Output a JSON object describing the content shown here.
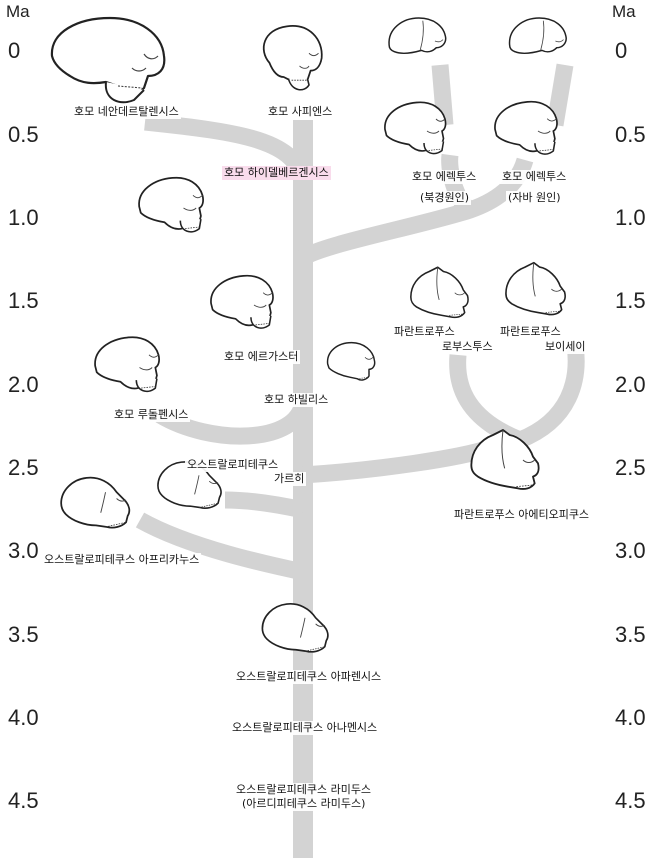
{
  "axis": {
    "unit": "Ma",
    "ticks": [
      "0",
      "0.5",
      "1.0",
      "1.5",
      "2.0",
      "2.5",
      "3.0",
      "3.5",
      "4.0",
      "4.5"
    ]
  },
  "colors": {
    "branch": "#d3d3d3",
    "highlight": "#f9dcec"
  },
  "species": [
    {
      "id": "neanderthalensis",
      "label": "호모 네안데르탈렌시스"
    },
    {
      "id": "sapiens",
      "label": "호모 사피엔스"
    },
    {
      "id": "heidelbergensis",
      "label": "호모 하이델베르겐시스"
    },
    {
      "id": "erectus-peking",
      "label": "호모 에렉투스",
      "sublabel": "(북경원인)"
    },
    {
      "id": "erectus-java",
      "label": "호모 에렉투스",
      "sublabel": "(자바 원인)"
    },
    {
      "id": "ergaster",
      "label": "호모 에르가스터"
    },
    {
      "id": "habilis",
      "label": "호모 하빌리스"
    },
    {
      "id": "rudolfensis",
      "label": "호모 루돌펜시스"
    },
    {
      "id": "robustus",
      "label": "파란트로푸스",
      "sublabel": "로부스투스"
    },
    {
      "id": "boisei",
      "label": "파란트로푸스",
      "sublabel": "보이세이"
    },
    {
      "id": "garhi",
      "label": "오스트랄로피테쿠스",
      "sublabel": "가르히"
    },
    {
      "id": "aethiopicus",
      "label": "파란트로푸스 아에티오피쿠스"
    },
    {
      "id": "africanus",
      "label": "오스트랄로피테쿠스 아프리카누스"
    },
    {
      "id": "afarensis",
      "label": "오스트랄로피테쿠스 아파렌시스"
    },
    {
      "id": "anamensis",
      "label": "오스트랄로피테쿠스 아나멘시스"
    },
    {
      "id": "ramidus",
      "label": "오스트랄로피테쿠스 라미두스",
      "sublabel": "(아르디피테쿠스 라미두스)"
    }
  ]
}
